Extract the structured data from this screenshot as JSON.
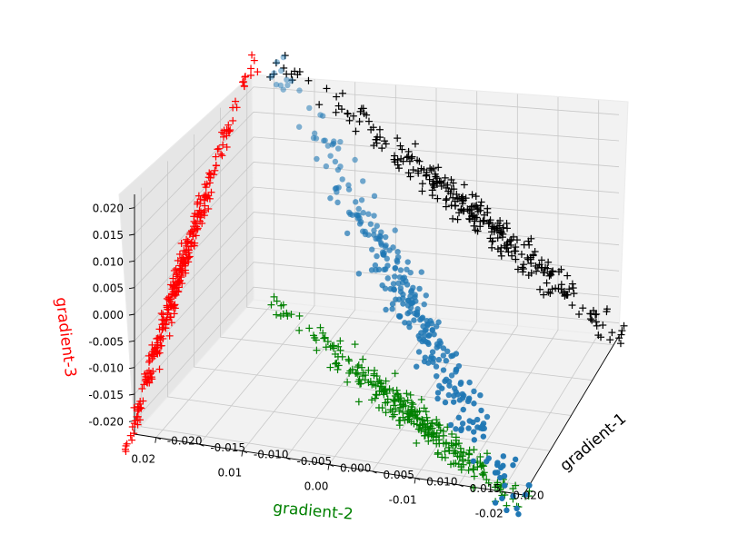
{
  "chart_data": {
    "type": "scatter3d",
    "axes": {
      "x": {
        "label": "gradient-1",
        "color": "#000000",
        "ticks": [
          "-0.020",
          "-0.015",
          "-0.010",
          "-0.005",
          "0.000",
          "0.005",
          "0.010",
          "0.015",
          "0.020"
        ],
        "tick_values": [
          -0.02,
          -0.015,
          -0.01,
          -0.005,
          0,
          0.005,
          0.01,
          0.015,
          0.02
        ]
      },
      "y": {
        "label": "gradient-2",
        "color": "#008000",
        "ticks": [
          "0.02",
          "0.01",
          "0.00",
          "-0.01",
          "-0.02"
        ],
        "tick_values": [
          0.02,
          0.01,
          0,
          -0.01,
          -0.02
        ]
      },
      "z": {
        "label": "gradient-3",
        "color": "#ff0000",
        "ticks": [
          "-0.020",
          "-0.015",
          "-0.010",
          "-0.005",
          "0.000",
          "0.005",
          "0.010",
          "0.015",
          "0.020"
        ],
        "tick_values": [
          -0.02,
          -0.015,
          -0.01,
          -0.005,
          0,
          0.005,
          0.01,
          0.015,
          0.02
        ]
      }
    },
    "grid": true,
    "series": [
      {
        "kind": "main",
        "marker": "circle",
        "color": "#1f77b4",
        "description_points": [
          [
            -0.02,
            -0.022,
            0.026
          ],
          [
            -0.01,
            -0.012,
            0.016
          ],
          [
            -0.002,
            -0.002,
            0.006
          ],
          [
            0.005,
            0.006,
            -0.002
          ],
          [
            0.012,
            0.013,
            -0.01
          ],
          [
            0.018,
            0.02,
            -0.018
          ],
          [
            0.022,
            0.024,
            -0.022
          ]
        ]
      },
      {
        "kind": "projection-z",
        "marker": "plus",
        "color": "#000000"
      },
      {
        "kind": "projection-x",
        "marker": "plus",
        "color": "#ff0000"
      },
      {
        "kind": "projection-y",
        "marker": "plus",
        "color": "#008000"
      }
    ]
  }
}
